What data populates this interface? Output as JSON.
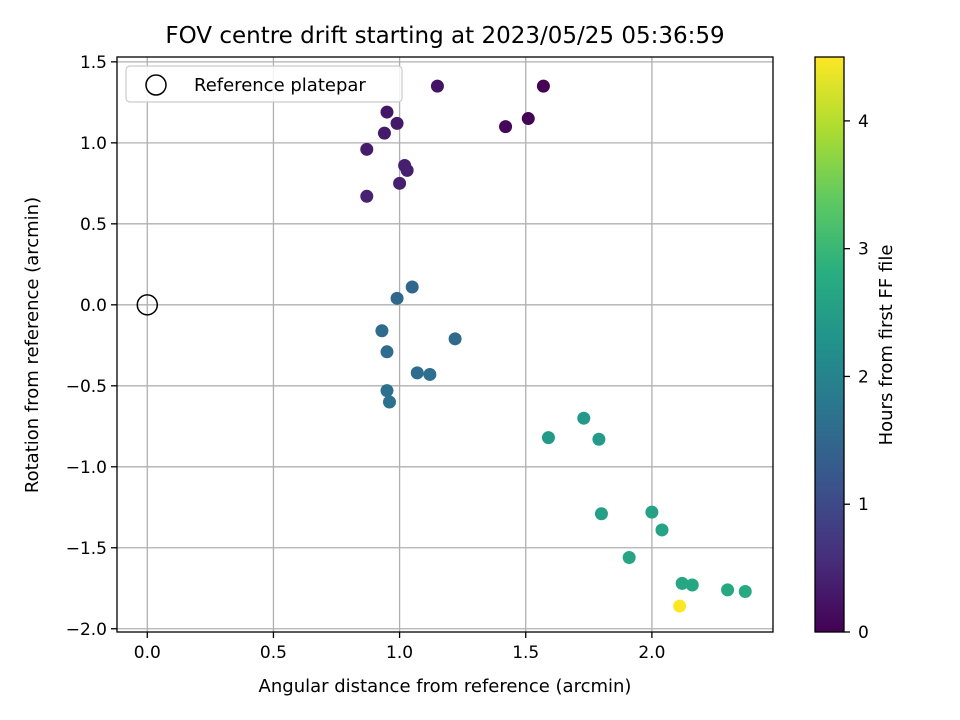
{
  "chart_data": {
    "type": "scatter",
    "title": "FOV centre drift starting at 2023/05/25 05:36:59",
    "xlabel": "Angular distance from reference (arcmin)",
    "ylabel": "Rotation from reference (arcmin)",
    "xlim": [
      -0.12,
      2.48
    ],
    "ylim": [
      -2.02,
      1.53
    ],
    "xticks": [
      0.0,
      0.5,
      1.0,
      1.5,
      2.0
    ],
    "xtick_labels": [
      "0.0",
      "0.5",
      "1.0",
      "1.5",
      "2.0"
    ],
    "yticks": [
      -2.0,
      -1.5,
      -1.0,
      -0.5,
      0.0,
      0.5,
      1.0,
      1.5
    ],
    "ytick_labels": [
      "−2.0",
      "−1.5",
      "−1.0",
      "−0.5",
      "0.0",
      "0.5",
      "1.0",
      "1.5"
    ],
    "grid": true,
    "legend": {
      "position": "upper-left",
      "entries": [
        "Reference platepar"
      ]
    },
    "reference_point": {
      "x": 0.0,
      "y": 0.0,
      "marker": "open-circle"
    },
    "colorbar": {
      "label": "Hours from first FF file",
      "range": [
        0,
        4.5
      ],
      "colormap": "viridis",
      "ticks": [
        0,
        1,
        2,
        3,
        4
      ],
      "tick_labels": [
        "0",
        "1",
        "2",
        "3",
        "4"
      ]
    },
    "points": [
      {
        "x": 1.57,
        "y": 1.35,
        "hours": 0.02
      },
      {
        "x": 1.51,
        "y": 1.15,
        "hours": 0.05
      },
      {
        "x": 1.42,
        "y": 1.1,
        "hours": 0.08
      },
      {
        "x": 1.15,
        "y": 1.35,
        "hours": 0.25
      },
      {
        "x": 0.95,
        "y": 1.19,
        "hours": 0.28
      },
      {
        "x": 0.99,
        "y": 1.12,
        "hours": 0.3
      },
      {
        "x": 0.94,
        "y": 1.06,
        "hours": 0.32
      },
      {
        "x": 0.87,
        "y": 0.96,
        "hours": 0.35
      },
      {
        "x": 1.02,
        "y": 0.86,
        "hours": 0.37
      },
      {
        "x": 1.03,
        "y": 0.83,
        "hours": 0.38
      },
      {
        "x": 1.0,
        "y": 0.75,
        "hours": 0.4
      },
      {
        "x": 0.87,
        "y": 0.67,
        "hours": 0.42
      },
      {
        "x": 1.05,
        "y": 0.11,
        "hours": 1.5
      },
      {
        "x": 0.99,
        "y": 0.04,
        "hours": 1.52
      },
      {
        "x": 1.22,
        "y": -0.21,
        "hours": 1.55
      },
      {
        "x": 0.93,
        "y": -0.16,
        "hours": 1.57
      },
      {
        "x": 0.95,
        "y": -0.29,
        "hours": 1.58
      },
      {
        "x": 1.07,
        "y": -0.42,
        "hours": 1.6
      },
      {
        "x": 1.12,
        "y": -0.43,
        "hours": 1.62
      },
      {
        "x": 0.95,
        "y": -0.53,
        "hours": 1.65
      },
      {
        "x": 0.96,
        "y": -0.6,
        "hours": 1.67
      },
      {
        "x": 1.73,
        "y": -0.7,
        "hours": 2.4
      },
      {
        "x": 1.59,
        "y": -0.82,
        "hours": 2.42
      },
      {
        "x": 1.79,
        "y": -0.83,
        "hours": 2.45
      },
      {
        "x": 1.8,
        "y": -1.29,
        "hours": 2.55
      },
      {
        "x": 2.0,
        "y": -1.28,
        "hours": 2.57
      },
      {
        "x": 2.04,
        "y": -1.39,
        "hours": 2.6
      },
      {
        "x": 1.91,
        "y": -1.56,
        "hours": 2.62
      },
      {
        "x": 2.12,
        "y": -1.72,
        "hours": 2.65
      },
      {
        "x": 2.16,
        "y": -1.73,
        "hours": 2.67
      },
      {
        "x": 2.3,
        "y": -1.76,
        "hours": 2.7
      },
      {
        "x": 2.37,
        "y": -1.77,
        "hours": 2.72
      },
      {
        "x": 2.11,
        "y": -1.86,
        "hours": 4.5
      }
    ]
  }
}
